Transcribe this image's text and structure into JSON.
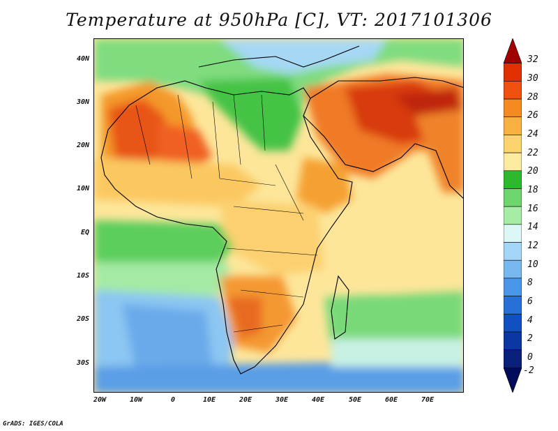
{
  "title": "Temperature at 950hPa [C], VT: 2017101306",
  "credit": "GrADS: IGES/COLA",
  "axes": {
    "x_ticks": [
      "20W",
      "10W",
      "0",
      "10E",
      "20E",
      "30E",
      "40E",
      "50E",
      "60E",
      "70E"
    ],
    "y_ticks": [
      "40N",
      "30N",
      "20N",
      "10N",
      "EQ",
      "10S",
      "20S",
      "30S"
    ]
  },
  "colorbar": {
    "labels": [
      "32",
      "30",
      "28",
      "26",
      "24",
      "22",
      "20",
      "18",
      "16",
      "14",
      "12",
      "10",
      "8",
      "6",
      "4",
      "2",
      "0",
      "-2"
    ],
    "colors": [
      "#a00000",
      "#e03000",
      "#f05010",
      "#f58a20",
      "#f8b040",
      "#fcd46e",
      "#fdeba0",
      "#2eb82e",
      "#6cd66c",
      "#a5eca5",
      "#ddf7f7",
      "#a4d6f8",
      "#78b8f0",
      "#4a96e8",
      "#2670d8",
      "#1050c0",
      "#0a38a0",
      "#08207a",
      "#000c5a"
    ]
  }
}
